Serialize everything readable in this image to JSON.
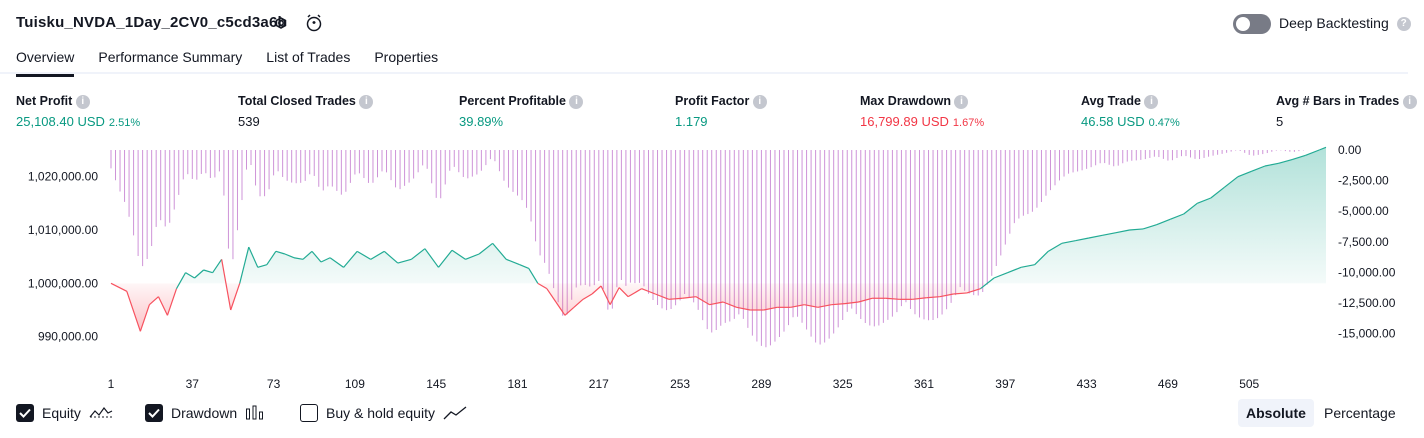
{
  "header": {
    "strategy_title": "Tuisku_NVDA_1Day_2CV0_c5cd3a6b",
    "deep_backtesting_label": "Deep Backtesting",
    "deep_backtesting_enabled": false
  },
  "tabs": [
    {
      "label": "Overview",
      "active": true
    },
    {
      "label": "Performance Summary",
      "active": false
    },
    {
      "label": "List of Trades",
      "active": false
    },
    {
      "label": "Properties",
      "active": false
    }
  ],
  "stats": {
    "net_profit": {
      "label": "Net Profit",
      "value": "25,108.40 USD",
      "pct": "2.51%"
    },
    "total_closed_trades": {
      "label": "Total Closed Trades",
      "value": "539"
    },
    "percent_profitable": {
      "label": "Percent Profitable",
      "value": "39.89%"
    },
    "profit_factor": {
      "label": "Profit Factor",
      "value": "1.179"
    },
    "max_drawdown": {
      "label": "Max Drawdown",
      "value": "16,799.89 USD",
      "pct": "1.67%"
    },
    "avg_trade": {
      "label": "Avg Trade",
      "value": "46.58 USD",
      "pct": "0.47%"
    },
    "avg_bars": {
      "label": "Avg # Bars in Trades",
      "value": "5"
    }
  },
  "colors": {
    "profit": "#089981",
    "loss": "#f23645",
    "drawdown_bar": "#ce93d8",
    "equity_line_up": "#22ab94",
    "equity_line_down": "#f7525f"
  },
  "chart_data": {
    "type": "line",
    "x_ticks": [
      "1",
      "37",
      "73",
      "109",
      "145",
      "181",
      "217",
      "253",
      "289",
      "325",
      "361",
      "397",
      "433",
      "469",
      "505"
    ],
    "x_range": [
      1,
      539
    ],
    "y_left_ticks": [
      "1,020,000.00",
      "1,010,000.00",
      "1,000,000.00",
      "990,000.00"
    ],
    "y_left_range": [
      986000,
      1025000
    ],
    "y_right_ticks": [
      "0.00",
      "-2,500.00",
      "-5,000.00",
      "-7,500.00",
      "-10,000.00",
      "-12,500.00",
      "-15,000.00"
    ],
    "y_right_range": [
      -17000,
      0
    ],
    "baseline": 1000000,
    "series": [
      {
        "name": "Equity",
        "x": [
          1,
          8,
          14,
          18,
          22,
          26,
          30,
          34,
          38,
          42,
          46,
          50,
          54,
          58,
          62,
          66,
          70,
          74,
          78,
          82,
          86,
          90,
          94,
          98,
          104,
          110,
          116,
          122,
          128,
          134,
          140,
          146,
          152,
          158,
          164,
          170,
          176,
          182,
          186,
          190,
          194,
          198,
          202,
          206,
          210,
          214,
          218,
          222,
          226,
          230,
          236,
          242,
          248,
          254,
          260,
          266,
          272,
          278,
          284,
          290,
          296,
          302,
          308,
          314,
          320,
          326,
          332,
          338,
          344,
          350,
          356,
          362,
          368,
          374,
          380,
          386,
          392,
          398,
          404,
          410,
          416,
          422,
          428,
          434,
          440,
          446,
          452,
          458,
          464,
          470,
          476,
          482,
          488,
          494,
          500,
          506,
          512,
          518,
          524,
          530,
          536,
          539
        ],
        "y": [
          1000000,
          998500,
          991000,
          996000,
          997500,
          994000,
          999000,
          1002000,
          1001000,
          1002500,
          1002000,
          1004500,
          995000,
          1000000,
          1006800,
          1003000,
          1003500,
          1006000,
          1005500,
          1004800,
          1004500,
          1006000,
          1004000,
          1004800,
          1003000,
          1006000,
          1004500,
          1006000,
          1003800,
          1004500,
          1006500,
          1003000,
          1006200,
          1004500,
          1005500,
          1007500,
          1004500,
          1003500,
          1002800,
          1000000,
          999000,
          996500,
          994000,
          995500,
          997000,
          998000,
          999500,
          996000,
          999200,
          997500,
          999000,
          998000,
          997000,
          997200,
          997500,
          996000,
          996500,
          995500,
          995000,
          995000,
          995500,
          995500,
          996000,
          995500,
          996000,
          996200,
          996500,
          997200,
          997200,
          997000,
          997000,
          997300,
          997500,
          998000,
          998200,
          999000,
          1001000,
          1002000,
          1003000,
          1003500,
          1006000,
          1007500,
          1008000,
          1008500,
          1009000,
          1009500,
          1010000,
          1010200,
          1011000,
          1012000,
          1013000,
          1015000,
          1016000,
          1018000,
          1020000,
          1021000,
          1022000,
          1022500,
          1023200,
          1024000,
          1025000,
          1025500
        ]
      },
      {
        "name": "Drawdown",
        "x": [
          1,
          8,
          14,
          18,
          22,
          26,
          30,
          34,
          38,
          42,
          46,
          50,
          54,
          58,
          62,
          66,
          70,
          74,
          78,
          82,
          86,
          90,
          94,
          98,
          104,
          110,
          116,
          122,
          128,
          134,
          140,
          146,
          152,
          158,
          164,
          170,
          176,
          182,
          186,
          190,
          194,
          198,
          202,
          206,
          210,
          214,
          218,
          222,
          226,
          230,
          236,
          242,
          248,
          254,
          260,
          266,
          272,
          278,
          284,
          290,
          296,
          302,
          308,
          314,
          320,
          326,
          332,
          338,
          344,
          350,
          356,
          362,
          368,
          374,
          380,
          386,
          392,
          398,
          404,
          410,
          416,
          422,
          428,
          434,
          440,
          446,
          452,
          458,
          464,
          470,
          476,
          482,
          488,
          494,
          500,
          506,
          512,
          518,
          524,
          530,
          536,
          539
        ],
        "y": [
          -1500,
          -5000,
          -11000,
          -9000,
          -5500,
          -6500,
          -4500,
          -2000,
          -3000,
          -1800,
          -2500,
          -1500,
          -10500,
          -6000,
          -500,
          -4000,
          -3800,
          -1500,
          -2500,
          -3000,
          -3200,
          -1800,
          -3500,
          -2800,
          -4000,
          -2000,
          -3000,
          -1500,
          -3500,
          -3000,
          -1000,
          -4500,
          -1200,
          -2800,
          -2000,
          -500,
          -3000,
          -4500,
          -5500,
          -8500,
          -9500,
          -12000,
          -15000,
          -13500,
          -12000,
          -11500,
          -10500,
          -14000,
          -11000,
          -13000,
          -11500,
          -12500,
          -13500,
          -13800,
          -13500,
          -15000,
          -14500,
          -15500,
          -16000,
          -16200,
          -15800,
          -15800,
          -15500,
          -16000,
          -15500,
          -15200,
          -14800,
          -14500,
          -14200,
          -14500,
          -14500,
          -14000,
          -13800,
          -13500,
          -12800,
          -12000,
          -10000,
          -8000,
          -6000,
          -5000,
          -3500,
          -2500,
          -2000,
          -1500,
          -1000,
          -1500,
          -1000,
          -800,
          -500,
          -1000,
          -500,
          -800,
          -500,
          -300,
          0,
          -500,
          -300,
          0,
          -200,
          0,
          0,
          0
        ]
      }
    ]
  },
  "legend": {
    "equity_label": "Equity",
    "equity_checked": true,
    "drawdown_label": "Drawdown",
    "drawdown_checked": true,
    "buyhold_label": "Buy & hold equity",
    "buyhold_checked": false
  },
  "view_toggle": {
    "absolute_label": "Absolute",
    "percentage_label": "Percentage",
    "active": "Absolute"
  }
}
